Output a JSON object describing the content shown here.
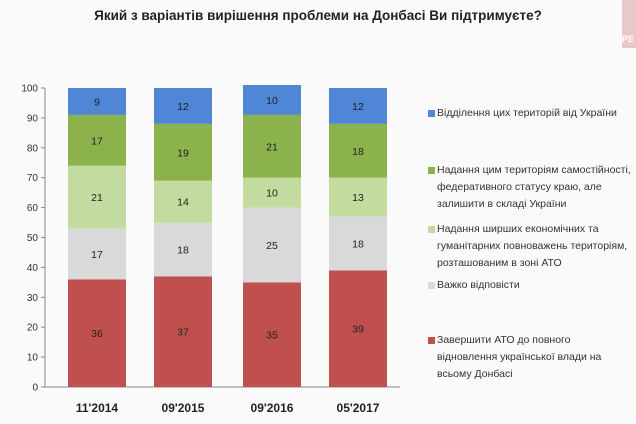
{
  "logo_text": "РЕ",
  "chart_data": {
    "type": "bar",
    "stacked": true,
    "title": "Який з варіантів вирішення проблеми на Донбасі Ви підтримуєте?",
    "xlabel": "",
    "ylabel": "",
    "ylim": [
      0,
      100
    ],
    "yticks": [
      0,
      10,
      20,
      30,
      40,
      50,
      60,
      70,
      80,
      90,
      100
    ],
    "grid": false,
    "legend_position": "right",
    "categories": [
      "11'2014",
      "09'2015",
      "09'2016",
      "05'2017"
    ],
    "series": [
      {
        "name": "Завершити АТО до повного відновлення української влади на всьому Донбасі",
        "color": "#c0504d",
        "values": [
          36,
          37,
          35,
          39
        ]
      },
      {
        "name": "Важко відповісти",
        "color": "#d9d9d9",
        "values": [
          17,
          18,
          25,
          18
        ]
      },
      {
        "name": "Надання ширших економічних та гуманітарних повноважень територіям, розташованим в зоні АТО",
        "color": "#c4dba0",
        "values": [
          21,
          14,
          10,
          13
        ]
      },
      {
        "name": "Надання цим територіям самостійності, федеративного статусу краю, але залишити в складі України",
        "color": "#8cb34b",
        "values": [
          17,
          19,
          21,
          18
        ]
      },
      {
        "name": "Відділення цих територій від України",
        "color": "#4f86d6",
        "values": [
          9,
          12,
          10,
          12
        ]
      }
    ]
  }
}
